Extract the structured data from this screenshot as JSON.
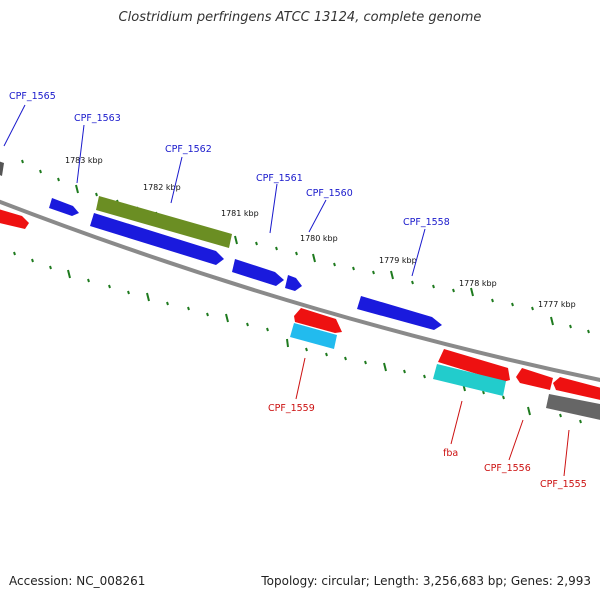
{
  "title": "Clostridium perfringens ATCC 13124, complete genome",
  "footer": {
    "accession": "Accession: NC_008261",
    "stats": "Topology: circular; Length: 3,256,683 bp; Genes: 2,993"
  },
  "ticks": [
    {
      "label": "1783 kbp",
      "major": true
    },
    {
      "label": "1782 kbp",
      "major": true
    },
    {
      "label": "1781 kbp",
      "major": true
    },
    {
      "label": "1780 kbp",
      "major": true
    },
    {
      "label": "1779 kbp",
      "major": true
    },
    {
      "label": "1778 kbp",
      "major": true
    },
    {
      "label": "1777 kbp",
      "major": true
    }
  ],
  "gene_labels": [
    {
      "text": "CPF_1565",
      "strand": "forward"
    },
    {
      "text": "CPF_1563",
      "strand": "forward"
    },
    {
      "text": "CPF_1562",
      "strand": "forward"
    },
    {
      "text": "CPF_1561",
      "strand": "forward"
    },
    {
      "text": "CPF_1560",
      "strand": "forward"
    },
    {
      "text": "CPF_1558",
      "strand": "forward"
    },
    {
      "text": "CPF_1559",
      "strand": "reverse"
    },
    {
      "text": "fba",
      "strand": "reverse"
    },
    {
      "text": "CPF_1556",
      "strand": "reverse"
    },
    {
      "text": "CPF_1555",
      "strand": "reverse"
    }
  ],
  "colors": {
    "forward_label": "#1a1acc",
    "reverse_label": "#cc1111",
    "backbone": "#7a7a7a",
    "tick": "#1e7a1e",
    "blue_gene": "#1a1add",
    "olive_gene": "#6b8e23",
    "red_gene": "#ee1111",
    "cyan_gene": "#22bbee",
    "teal_gene": "#22cccc",
    "grey_gene": "#666666"
  }
}
